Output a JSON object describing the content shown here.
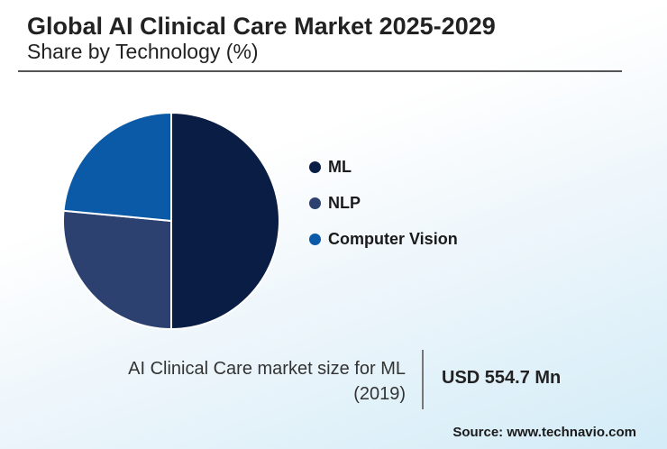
{
  "header": {
    "title": "Global AI Clinical Care Market 2025-2029",
    "subtitle": "Share by Technology (%)"
  },
  "chart_data": {
    "type": "pie",
    "categories": [
      "ML",
      "NLP",
      "Computer Vision"
    ],
    "values": [
      50,
      26.5,
      23.5
    ],
    "colors": [
      "#0a1d45",
      "#2c4170",
      "#0b5aa8"
    ],
    "legend_position": "right"
  },
  "callout": {
    "caption": "AI Clinical Care market size for ML (2019)",
    "value": "USD 554.7 Mn"
  },
  "footer": {
    "source": "Source: www.technavio.com"
  }
}
